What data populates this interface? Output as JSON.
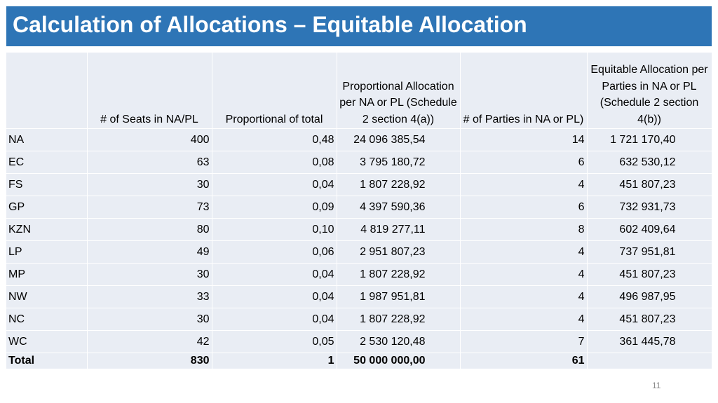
{
  "title": "Calculation of Allocations – Equitable Allocation",
  "page_number": "11",
  "colors": {
    "title_bar": "#2e75b6",
    "title_text": "#ffffff",
    "cell_fill": "#e9edf4"
  },
  "table": {
    "headers": [
      "",
      "# of Seats in NA/PL",
      "Proportional of total",
      "Proportional Allocation per NA or PL (Schedule 2 section 4(a))",
      "# of Parties in NA or PL)",
      "Equitable Allocation per Parties in NA or PL (Schedule 2 section 4(b))"
    ],
    "rows": [
      {
        "name": "NA",
        "seats": "400",
        "proportion": "0,48",
        "prop_alloc": "24 096 385,54",
        "parties": "14",
        "equitable": "1 721 170,40"
      },
      {
        "name": "EC",
        "seats": "63",
        "proportion": "0,08",
        "prop_alloc": "3 795 180,72",
        "parties": "6",
        "equitable": "632 530,12"
      },
      {
        "name": "FS",
        "seats": "30",
        "proportion": "0,04",
        "prop_alloc": "1 807 228,92",
        "parties": "4",
        "equitable": "451 807,23"
      },
      {
        "name": "GP",
        "seats": "73",
        "proportion": "0,09",
        "prop_alloc": "4 397 590,36",
        "parties": "6",
        "equitable": "732 931,73"
      },
      {
        "name": "KZN",
        "seats": "80",
        "proportion": "0,10",
        "prop_alloc": "4 819 277,11",
        "parties": "8",
        "equitable": "602 409,64"
      },
      {
        "name": "LP",
        "seats": "49",
        "proportion": "0,06",
        "prop_alloc": "2 951 807,23",
        "parties": "4",
        "equitable": "737 951,81"
      },
      {
        "name": "MP",
        "seats": "30",
        "proportion": "0,04",
        "prop_alloc": "1 807 228,92",
        "parties": "4",
        "equitable": "451 807,23"
      },
      {
        "name": "NW",
        "seats": "33",
        "proportion": "0,04",
        "prop_alloc": "1 987 951,81",
        "parties": "4",
        "equitable": "496 987,95"
      },
      {
        "name": "NC",
        "seats": "30",
        "proportion": "0,04",
        "prop_alloc": "1 807 228,92",
        "parties": "4",
        "equitable": "451 807,23"
      },
      {
        "name": "WC",
        "seats": "42",
        "proportion": "0,05",
        "prop_alloc": "2 530 120,48",
        "parties": "7",
        "equitable": "361 445,78"
      }
    ],
    "total": {
      "name": "Total",
      "seats": "830",
      "proportion": "1",
      "prop_alloc": "50 000 000,00",
      "parties": "61",
      "equitable": ""
    }
  }
}
